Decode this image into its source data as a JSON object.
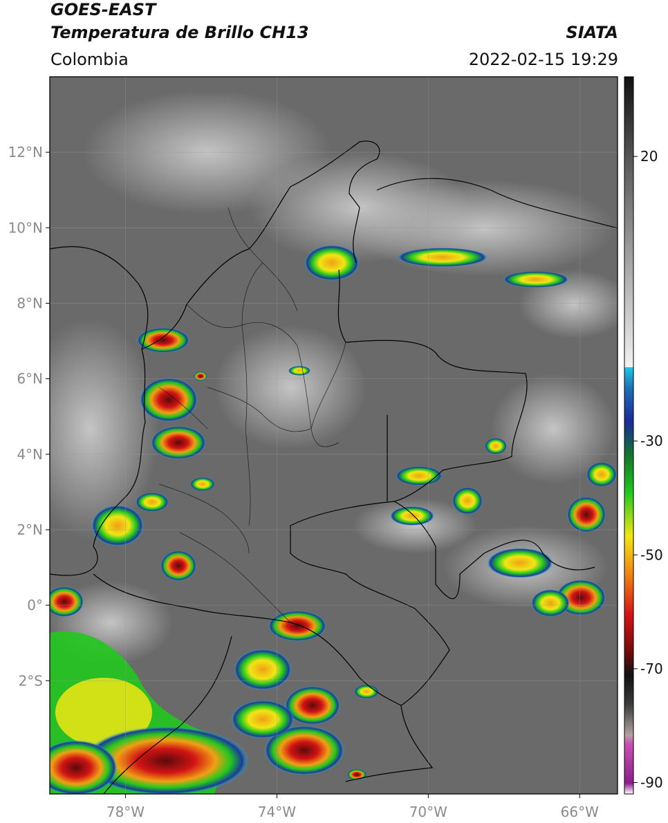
{
  "header": {
    "title_line1": "GOES-EAST",
    "title_line2": "Temperatura de Brillo CH13",
    "brand": "SIATA",
    "region": "Colombia",
    "timestamp": "2022-02-15 19:29"
  },
  "map": {
    "lon_range": [
      -80,
      -65
    ],
    "lat_range": [
      -5,
      14
    ],
    "lat_ticks": [
      {
        "value": 12,
        "label": "12°N"
      },
      {
        "value": 10,
        "label": "10°N"
      },
      {
        "value": 8,
        "label": "8°N"
      },
      {
        "value": 6,
        "label": "6°N"
      },
      {
        "value": 4,
        "label": "4°N"
      },
      {
        "value": 2,
        "label": "2°N"
      },
      {
        "value": 0,
        "label": "0°"
      },
      {
        "value": -2,
        "label": "2°S"
      }
    ],
    "lon_ticks": [
      {
        "value": -78,
        "label": "78°W"
      },
      {
        "value": -74,
        "label": "74°W"
      },
      {
        "value": -70,
        "label": "70°W"
      },
      {
        "value": -66,
        "label": "66°W"
      }
    ],
    "gridlines": true
  },
  "colorbar": {
    "range": [
      -92,
      34
    ],
    "ticks": [
      {
        "value": 20,
        "label": "20"
      },
      {
        "value": -30,
        "label": "-30"
      },
      {
        "value": -50,
        "label": "-50"
      },
      {
        "value": -70,
        "label": "-70"
      },
      {
        "value": -90,
        "label": "-90"
      }
    ],
    "colors": {
      "warm_gray": "#6e6e6e",
      "cyan": "#1ec8e6",
      "blue": "#1a2a9a",
      "green": "#22c81e",
      "yellow": "#f0e614",
      "orange": "#f08c14",
      "red": "#d21414",
      "dark_red": "#780a0a",
      "black": "#111111",
      "magenta": "#c850b4",
      "purple": "#8c1e8c"
    }
  }
}
